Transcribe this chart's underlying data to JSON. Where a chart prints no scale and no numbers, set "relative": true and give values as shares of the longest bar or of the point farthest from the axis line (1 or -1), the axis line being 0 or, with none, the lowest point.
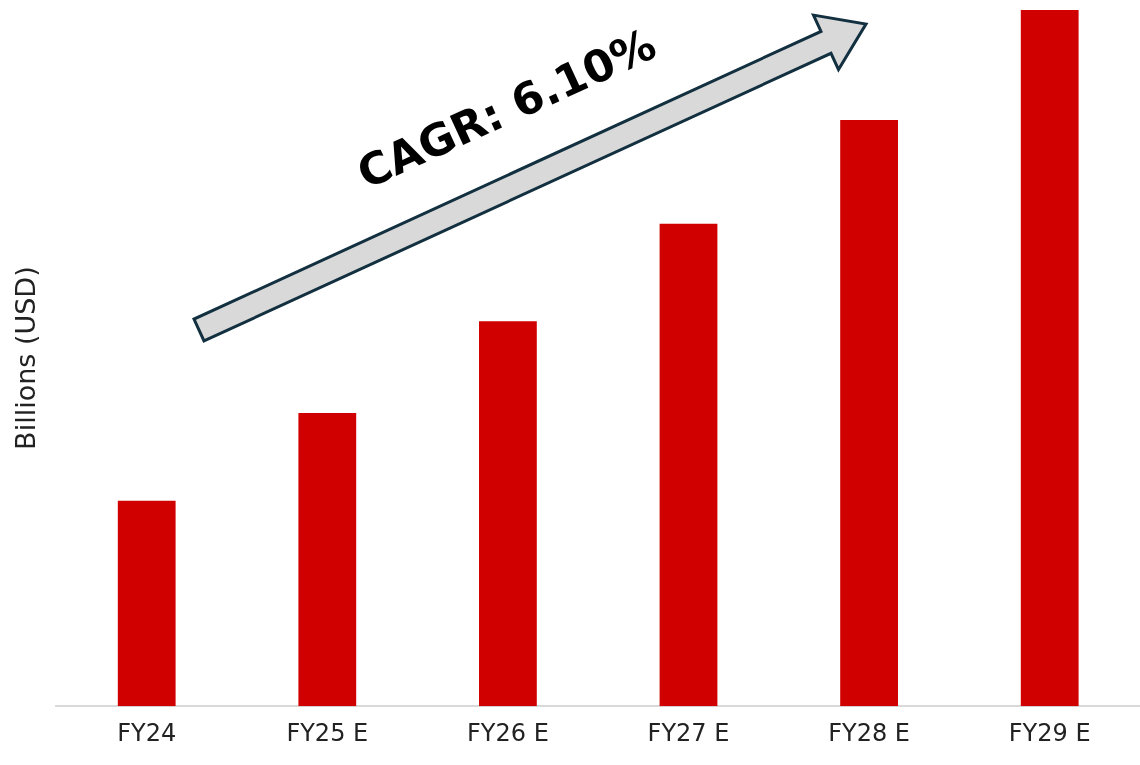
{
  "chart_data": {
    "type": "bar",
    "ylabel": "Billions (USD)",
    "categories": [
      "FY24",
      "FY25 E",
      "FY26 E",
      "FY27 E",
      "FY28 E",
      "FY29 E"
    ],
    "values": [
      0.295,
      0.421,
      0.553,
      0.693,
      0.842,
      1
    ],
    "color": "#d00000",
    "relative": true,
    "annotations": [
      "CAGR: 6.10%"
    ]
  }
}
